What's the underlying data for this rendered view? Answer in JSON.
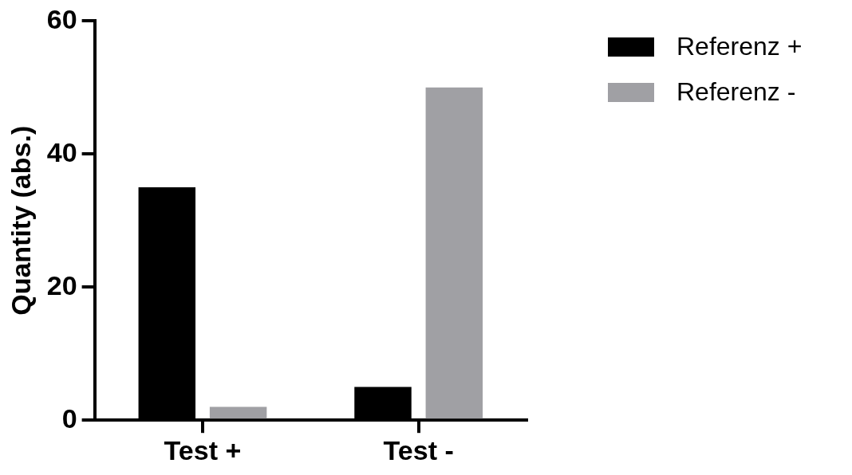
{
  "chart_data": {
    "type": "bar",
    "ylabel": "Quantity (abs.)",
    "categories": [
      "Test +",
      "Test -"
    ],
    "series": [
      {
        "name": "Referenz +",
        "color": "#000000",
        "values": [
          35,
          5
        ]
      },
      {
        "name": "Referenz -",
        "color": "#a0a0a4",
        "values": [
          2,
          50
        ]
      }
    ],
    "ylim": [
      0,
      60
    ],
    "yticks": [
      0,
      20,
      40,
      60
    ],
    "legend": "right"
  }
}
